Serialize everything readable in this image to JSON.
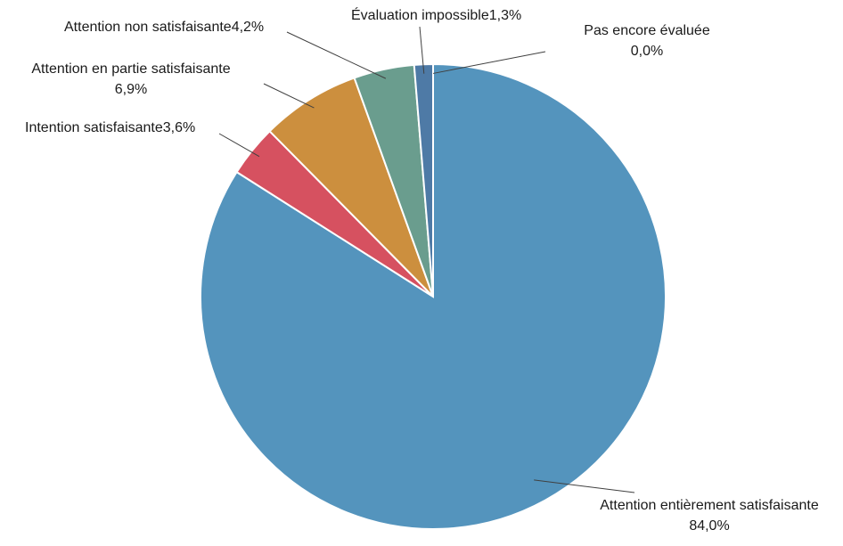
{
  "chart_data": {
    "type": "pie",
    "title": "",
    "start_angle_deg": 0,
    "direction": "clockwise",
    "slices": [
      {
        "label": "Attention entièrement satisfaisante",
        "value": 84.0,
        "display": "84,0%",
        "color": "#5494bd"
      },
      {
        "label": "Intention satisfaisante",
        "value": 3.6,
        "display": "3,6%",
        "color": "#d65160"
      },
      {
        "label": "Attention en partie satisfaisante",
        "value": 6.9,
        "display": "6,9%",
        "color": "#cc8f3e"
      },
      {
        "label": "Attention non satisfaisante",
        "value": 4.2,
        "display": "4,2%",
        "color": "#6a9d8e"
      },
      {
        "label": "Évaluation impossible",
        "value": 1.3,
        "display": "1,3%",
        "color": "#4e7aa6"
      },
      {
        "label": "Pas encore évaluée",
        "value": 0.0,
        "display": "0,0%",
        "color": "#8fa7c8"
      }
    ]
  }
}
